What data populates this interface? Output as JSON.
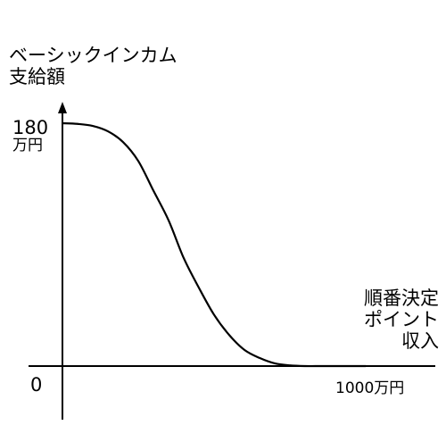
{
  "chart_data": {
    "type": "line",
    "ylabel": "ベーシックインカム\n支給額",
    "xlabel": "順番決定\nポイント\n収入",
    "y_tick_value": "180",
    "y_tick_unit": "万円",
    "origin_label": "0",
    "x_tick_label": "1000万円",
    "xlim": [
      0,
      1000
    ],
    "ylim": [
      0,
      180
    ],
    "series": [
      {
        "x": [
          0,
          50,
          100,
          150,
          200,
          250,
          300,
          350,
          400,
          450,
          500,
          550,
          600,
          650,
          700,
          750,
          800,
          850,
          900,
          950,
          1000
        ],
        "values": [
          180,
          179.5,
          178,
          174,
          166,
          152,
          130,
          108,
          80,
          58,
          38,
          23,
          12,
          6,
          2,
          0.5,
          0,
          0,
          0,
          0,
          0
        ]
      }
    ],
    "grid": false,
    "legend": "none"
  }
}
